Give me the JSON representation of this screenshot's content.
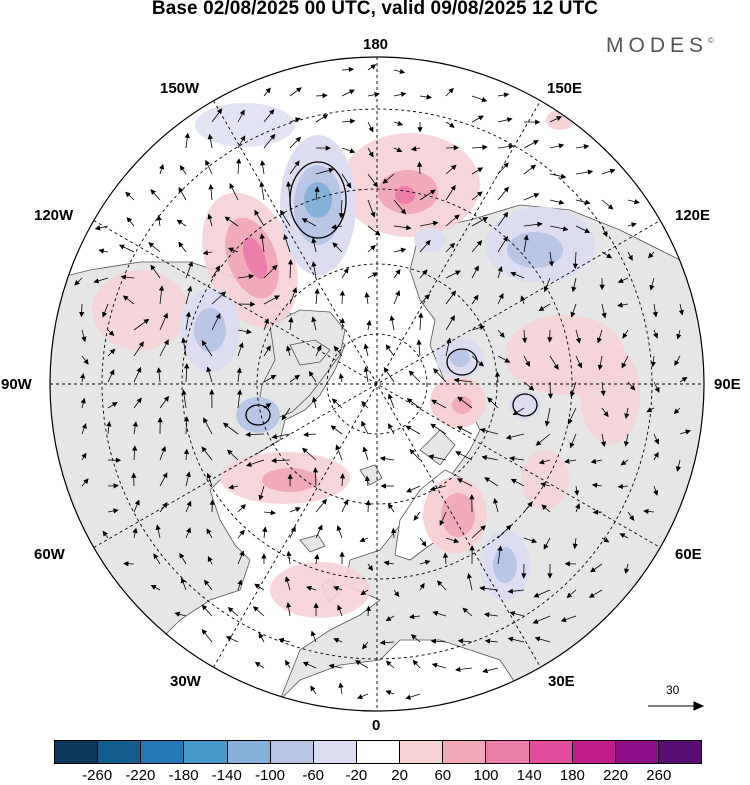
{
  "title": "Base 02/08/2025 00 UTC, valid 09/08/2025 12 UTC",
  "brand": {
    "name": "MODES",
    "mark": "©"
  },
  "longitude_labels": {
    "top": "180",
    "top_left": "150W",
    "top_right": "150E",
    "upper_left": "120W",
    "upper_right": "120E",
    "left": "90W",
    "right": "90E",
    "lower_left": "60W",
    "lower_right": "60E",
    "bottom_left": "30W",
    "bottom_right": "30E",
    "bottom": "0"
  },
  "reference_vector": {
    "label": "30"
  },
  "colorbar": {
    "colors": [
      "#0d3a5c",
      "#135d8c",
      "#2378b5",
      "#4a9ac9",
      "#85b1d9",
      "#b9c6e4",
      "#dcddf0",
      "#ffffff",
      "#f6d2d7",
      "#f1aab9",
      "#ec7fa9",
      "#e24d9e",
      "#c31a8c",
      "#8e0f87",
      "#5a0d73"
    ],
    "tick_labels": [
      "-260",
      "-220",
      "-180",
      "-140",
      "-100",
      "-60",
      "-20",
      "20",
      "60",
      "100",
      "140",
      "180",
      "220",
      "260"
    ]
  },
  "map": {
    "projection": "north-polar-stereographic",
    "land_color": "#e6e6e6",
    "ocean_color": "#ffffff",
    "coast_color": "#555555"
  }
}
